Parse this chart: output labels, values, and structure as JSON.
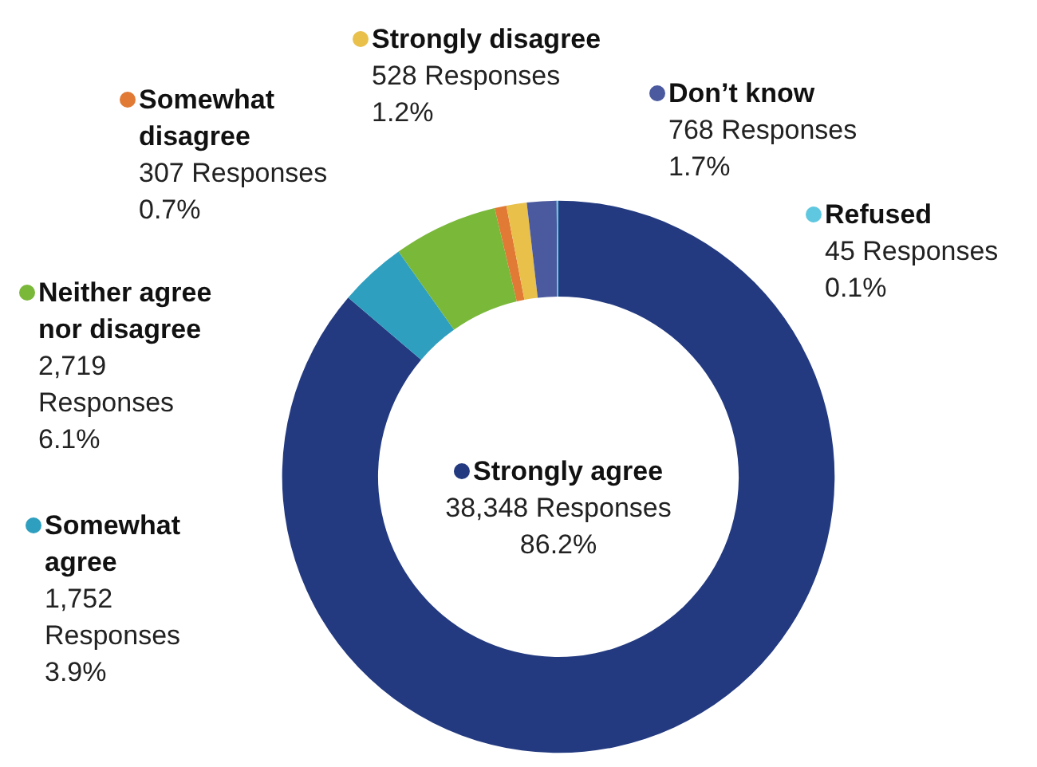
{
  "chart_data": {
    "type": "donut",
    "categories": [
      "Strongly agree",
      "Somewhat agree",
      "Neither agree nor disagree",
      "Somewhat disagree",
      "Strongly disagree",
      "Don’t know",
      "Refused"
    ],
    "values": [
      38348,
      1752,
      2719,
      307,
      528,
      768,
      45
    ],
    "legend": "top left",
    "colors": [
      "#233a80",
      "#2f9fbf",
      "#7ab83a",
      "#e07a35",
      "#e8c04a",
      "#4b5a9e",
      "#5fc8e0"
    ],
    "value_labels": [
      "38,348 Responses\n86.2%",
      "1,752 Responses\n3.9%",
      "2,719 Responses\n6.1%",
      "307 Responses\n0.7%",
      "528 Responses\n1.2%",
      "768 Responses\n1.7%",
      "45 Responses\n0.1%"
    ]
  }
}
